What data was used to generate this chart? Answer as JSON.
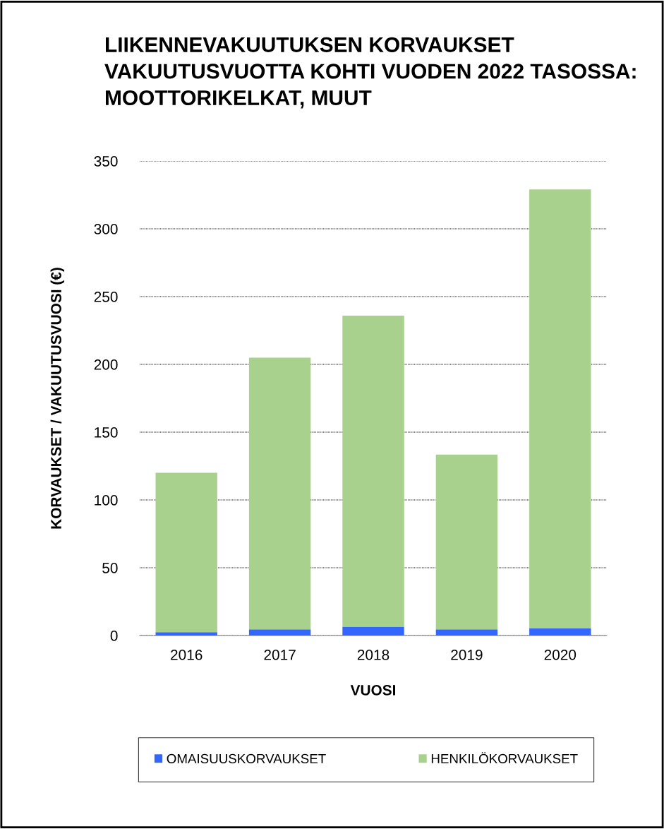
{
  "chart_data": {
    "type": "bar",
    "title": "LIIKENNEVAKUUTUKSEN KORVAUKSET VAKUUTUSVUOTTA KOHTI VUODEN 2022 TASOSSA: MOOTTORIKELKAT, MUUT",
    "xlabel": "VUOSI",
    "ylabel": "KORVAUKSET / VAKUUTUSVUOSI (€)",
    "categories": [
      "2016",
      "2017",
      "2018",
      "2019",
      "2020"
    ],
    "stacked": true,
    "series": [
      {
        "name": "OMAISUUSKORVAUKSET",
        "color": "#3366ff",
        "values": [
          2.5,
          4.5,
          6.5,
          4.5,
          5.5
        ]
      },
      {
        "name": "HENKILÖKORVAUKSET",
        "color": "#a9d18e",
        "values": [
          117.5,
          200.5,
          229.5,
          129,
          323.5
        ]
      }
    ],
    "ylim": [
      0,
      350
    ],
    "yticks": [
      0,
      50,
      100,
      150,
      200,
      250,
      300,
      350
    ],
    "grid": "y",
    "legend": "bottom"
  }
}
